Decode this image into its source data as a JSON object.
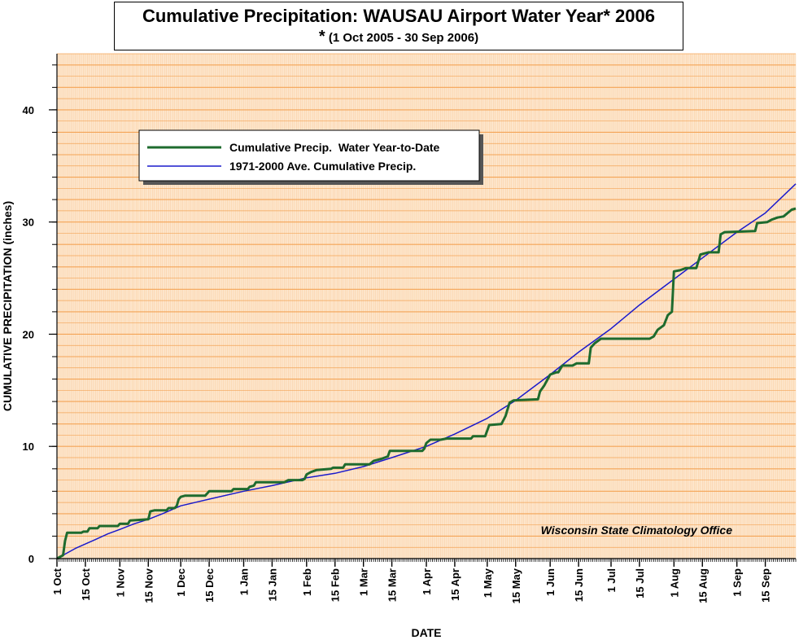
{
  "chart_data": {
    "type": "line",
    "title": "Cumulative Precipitation: WAUSAU Airport Water Year* 2006",
    "subtitle_star": "*",
    "subtitle": "(1 Oct 2005 - 30 Sep 2006)",
    "xlabel": "DATE",
    "ylabel": "CUMULATIVE PRECIPITATION (inches)",
    "xlim": [
      "2005-10-01",
      "2006-09-30"
    ],
    "ylim": [
      0,
      45
    ],
    "y_ticks": [
      0,
      10,
      20,
      30,
      40
    ],
    "x_ticks": [
      {
        "date": "2005-10-01",
        "label": "1 Oct"
      },
      {
        "date": "2005-10-15",
        "label": "15 Oct"
      },
      {
        "date": "2005-11-01",
        "label": "1 Nov"
      },
      {
        "date": "2005-11-15",
        "label": "15 Nov"
      },
      {
        "date": "2005-12-01",
        "label": "1 Dec"
      },
      {
        "date": "2005-12-15",
        "label": "15 Dec"
      },
      {
        "date": "2006-01-01",
        "label": "1 Jan"
      },
      {
        "date": "2006-01-15",
        "label": "15 Jan"
      },
      {
        "date": "2006-02-01",
        "label": "1 Feb"
      },
      {
        "date": "2006-02-15",
        "label": "15 Feb"
      },
      {
        "date": "2006-03-01",
        "label": "1 Mar"
      },
      {
        "date": "2006-03-15",
        "label": "15 Mar"
      },
      {
        "date": "2006-04-01",
        "label": "1 Apr"
      },
      {
        "date": "2006-04-15",
        "label": "15 Apr"
      },
      {
        "date": "2006-05-01",
        "label": "1 May"
      },
      {
        "date": "2006-05-15",
        "label": "15 May"
      },
      {
        "date": "2006-06-01",
        "label": "1 Jun"
      },
      {
        "date": "2006-06-15",
        "label": "15 Jun"
      },
      {
        "date": "2006-07-01",
        "label": "1 Jul"
      },
      {
        "date": "2006-07-15",
        "label": "15 Jul"
      },
      {
        "date": "2006-08-01",
        "label": "1 Aug"
      },
      {
        "date": "2006-08-15",
        "label": "15 Aug"
      },
      {
        "date": "2006-09-01",
        "label": "1 Sep"
      },
      {
        "date": "2006-09-15",
        "label": "15 Sep"
      }
    ],
    "grid": true,
    "legend_position": "upper-left",
    "annotation": "Wisconsin State Climatology Office",
    "colors": {
      "plot_background": "#fde6cc",
      "grid": "#f4a456",
      "observed": "#1e6b2e",
      "average": "#1a1acc"
    },
    "series": [
      {
        "name": "Cumulative Precip.  Water Year-to-Date",
        "color": "#1e6b2e",
        "points": [
          {
            "x": "2005-10-01",
            "y": 0
          },
          {
            "x": "2005-10-02",
            "y": 0.1
          },
          {
            "x": "2005-10-04",
            "y": 0.3
          },
          {
            "x": "2005-10-05",
            "y": 1.6
          },
          {
            "x": "2005-10-06",
            "y": 2.3
          },
          {
            "x": "2005-10-13",
            "y": 2.3
          },
          {
            "x": "2005-10-14",
            "y": 2.4
          },
          {
            "x": "2005-10-16",
            "y": 2.4
          },
          {
            "x": "2005-10-17",
            "y": 2.7
          },
          {
            "x": "2005-10-21",
            "y": 2.7
          },
          {
            "x": "2005-10-22",
            "y": 2.9
          },
          {
            "x": "2005-10-31",
            "y": 2.9
          },
          {
            "x": "2005-11-01",
            "y": 3.1
          },
          {
            "x": "2005-11-05",
            "y": 3.1
          },
          {
            "x": "2005-11-06",
            "y": 3.4
          },
          {
            "x": "2005-11-15",
            "y": 3.5
          },
          {
            "x": "2005-11-16",
            "y": 4.2
          },
          {
            "x": "2005-11-18",
            "y": 4.3
          },
          {
            "x": "2005-11-24",
            "y": 4.3
          },
          {
            "x": "2005-11-25",
            "y": 4.5
          },
          {
            "x": "2005-11-28",
            "y": 4.5
          },
          {
            "x": "2005-11-29",
            "y": 4.7
          },
          {
            "x": "2005-11-30",
            "y": 5.3
          },
          {
            "x": "2005-12-01",
            "y": 5.5
          },
          {
            "x": "2005-12-03",
            "y": 5.6
          },
          {
            "x": "2005-12-13",
            "y": 5.6
          },
          {
            "x": "2005-12-14",
            "y": 5.8
          },
          {
            "x": "2005-12-15",
            "y": 6.0
          },
          {
            "x": "2005-12-26",
            "y": 6.0
          },
          {
            "x": "2005-12-27",
            "y": 6.2
          },
          {
            "x": "2006-01-03",
            "y": 6.2
          },
          {
            "x": "2006-01-04",
            "y": 6.4
          },
          {
            "x": "2006-01-06",
            "y": 6.5
          },
          {
            "x": "2006-01-07",
            "y": 6.8
          },
          {
            "x": "2006-01-21",
            "y": 6.8
          },
          {
            "x": "2006-01-23",
            "y": 7.0
          },
          {
            "x": "2006-01-30",
            "y": 7.0
          },
          {
            "x": "2006-01-31",
            "y": 7.1
          },
          {
            "x": "2006-02-01",
            "y": 7.5
          },
          {
            "x": "2006-02-03",
            "y": 7.7
          },
          {
            "x": "2006-02-06",
            "y": 7.9
          },
          {
            "x": "2006-02-13",
            "y": 8.0
          },
          {
            "x": "2006-02-14",
            "y": 8.1
          },
          {
            "x": "2006-02-19",
            "y": 8.1
          },
          {
            "x": "2006-02-20",
            "y": 8.4
          },
          {
            "x": "2006-03-04",
            "y": 8.4
          },
          {
            "x": "2006-03-06",
            "y": 8.7
          },
          {
            "x": "2006-03-10",
            "y": 8.9
          },
          {
            "x": "2006-03-13",
            "y": 9.1
          },
          {
            "x": "2006-03-14",
            "y": 9.6
          },
          {
            "x": "2006-03-30",
            "y": 9.6
          },
          {
            "x": "2006-03-31",
            "y": 9.8
          },
          {
            "x": "2006-04-01",
            "y": 10.3
          },
          {
            "x": "2006-04-03",
            "y": 10.6
          },
          {
            "x": "2006-04-08",
            "y": 10.6
          },
          {
            "x": "2006-04-11",
            "y": 10.7
          },
          {
            "x": "2006-04-23",
            "y": 10.7
          },
          {
            "x": "2006-04-24",
            "y": 10.9
          },
          {
            "x": "2006-04-30",
            "y": 10.9
          },
          {
            "x": "2006-05-02",
            "y": 11.9
          },
          {
            "x": "2006-05-08",
            "y": 12.0
          },
          {
            "x": "2006-05-10",
            "y": 12.7
          },
          {
            "x": "2006-05-11",
            "y": 13.3
          },
          {
            "x": "2006-05-12",
            "y": 13.9
          },
          {
            "x": "2006-05-14",
            "y": 14.1
          },
          {
            "x": "2006-05-26",
            "y": 14.2
          },
          {
            "x": "2006-05-27",
            "y": 14.9
          },
          {
            "x": "2006-05-29",
            "y": 15.4
          },
          {
            "x": "2006-06-01",
            "y": 16.4
          },
          {
            "x": "2006-06-04",
            "y": 16.6
          },
          {
            "x": "2006-06-05",
            "y": 16.6
          },
          {
            "x": "2006-06-07",
            "y": 17.2
          },
          {
            "x": "2006-06-12",
            "y": 17.2
          },
          {
            "x": "2006-06-14",
            "y": 17.4
          },
          {
            "x": "2006-06-20",
            "y": 17.4
          },
          {
            "x": "2006-06-21",
            "y": 18.8
          },
          {
            "x": "2006-06-23",
            "y": 19.2
          },
          {
            "x": "2006-06-26",
            "y": 19.6
          },
          {
            "x": "2006-07-20",
            "y": 19.6
          },
          {
            "x": "2006-07-22",
            "y": 19.8
          },
          {
            "x": "2006-07-24",
            "y": 20.4
          },
          {
            "x": "2006-07-27",
            "y": 20.8
          },
          {
            "x": "2006-07-29",
            "y": 21.7
          },
          {
            "x": "2006-07-31",
            "y": 22.0
          },
          {
            "x": "2006-08-01",
            "y": 25.6
          },
          {
            "x": "2006-08-04",
            "y": 25.7
          },
          {
            "x": "2006-08-07",
            "y": 25.9
          },
          {
            "x": "2006-08-12",
            "y": 25.9
          },
          {
            "x": "2006-08-14",
            "y": 27.1
          },
          {
            "x": "2006-08-18",
            "y": 27.3
          },
          {
            "x": "2006-08-23",
            "y": 27.3
          },
          {
            "x": "2006-08-24",
            "y": 28.9
          },
          {
            "x": "2006-08-26",
            "y": 29.1
          },
          {
            "x": "2006-09-10",
            "y": 29.2
          },
          {
            "x": "2006-09-11",
            "y": 29.9
          },
          {
            "x": "2006-09-16",
            "y": 30.0
          },
          {
            "x": "2006-09-18",
            "y": 30.2
          },
          {
            "x": "2006-09-21",
            "y": 30.4
          },
          {
            "x": "2006-09-24",
            "y": 30.5
          },
          {
            "x": "2006-09-26",
            "y": 30.8
          },
          {
            "x": "2006-09-28",
            "y": 31.1
          },
          {
            "x": "2006-09-30",
            "y": 31.2
          }
        ]
      },
      {
        "name": "1971-2000 Ave. Cumulative Precip.",
        "color": "#1a1acc",
        "points": [
          {
            "x": "2005-10-01",
            "y": 0
          },
          {
            "x": "2005-10-05",
            "y": 0.4
          },
          {
            "x": "2005-10-10",
            "y": 0.9
          },
          {
            "x": "2005-10-15",
            "y": 1.3
          },
          {
            "x": "2005-10-20",
            "y": 1.7
          },
          {
            "x": "2005-10-26",
            "y": 2.2
          },
          {
            "x": "2005-11-01",
            "y": 2.6
          },
          {
            "x": "2005-11-08",
            "y": 3.1
          },
          {
            "x": "2005-11-15",
            "y": 3.5
          },
          {
            "x": "2005-11-22",
            "y": 4.0
          },
          {
            "x": "2005-12-01",
            "y": 4.7
          },
          {
            "x": "2005-12-15",
            "y": 5.3
          },
          {
            "x": "2006-01-01",
            "y": 6.0
          },
          {
            "x": "2006-01-15",
            "y": 6.5
          },
          {
            "x": "2006-02-01",
            "y": 7.2
          },
          {
            "x": "2006-02-15",
            "y": 7.6
          },
          {
            "x": "2006-03-01",
            "y": 8.2
          },
          {
            "x": "2006-03-15",
            "y": 9.0
          },
          {
            "x": "2006-04-01",
            "y": 10.0
          },
          {
            "x": "2006-04-15",
            "y": 11.1
          },
          {
            "x": "2006-05-01",
            "y": 12.5
          },
          {
            "x": "2006-05-15",
            "y": 14.1
          },
          {
            "x": "2006-06-01",
            "y": 16.4
          },
          {
            "x": "2006-06-15",
            "y": 18.4
          },
          {
            "x": "2006-07-01",
            "y": 20.5
          },
          {
            "x": "2006-07-15",
            "y": 22.6
          },
          {
            "x": "2006-08-01",
            "y": 24.9
          },
          {
            "x": "2006-08-15",
            "y": 26.8
          },
          {
            "x": "2006-09-01",
            "y": 29.1
          },
          {
            "x": "2006-09-15",
            "y": 30.8
          },
          {
            "x": "2006-09-30",
            "y": 33.4
          }
        ]
      }
    ]
  }
}
